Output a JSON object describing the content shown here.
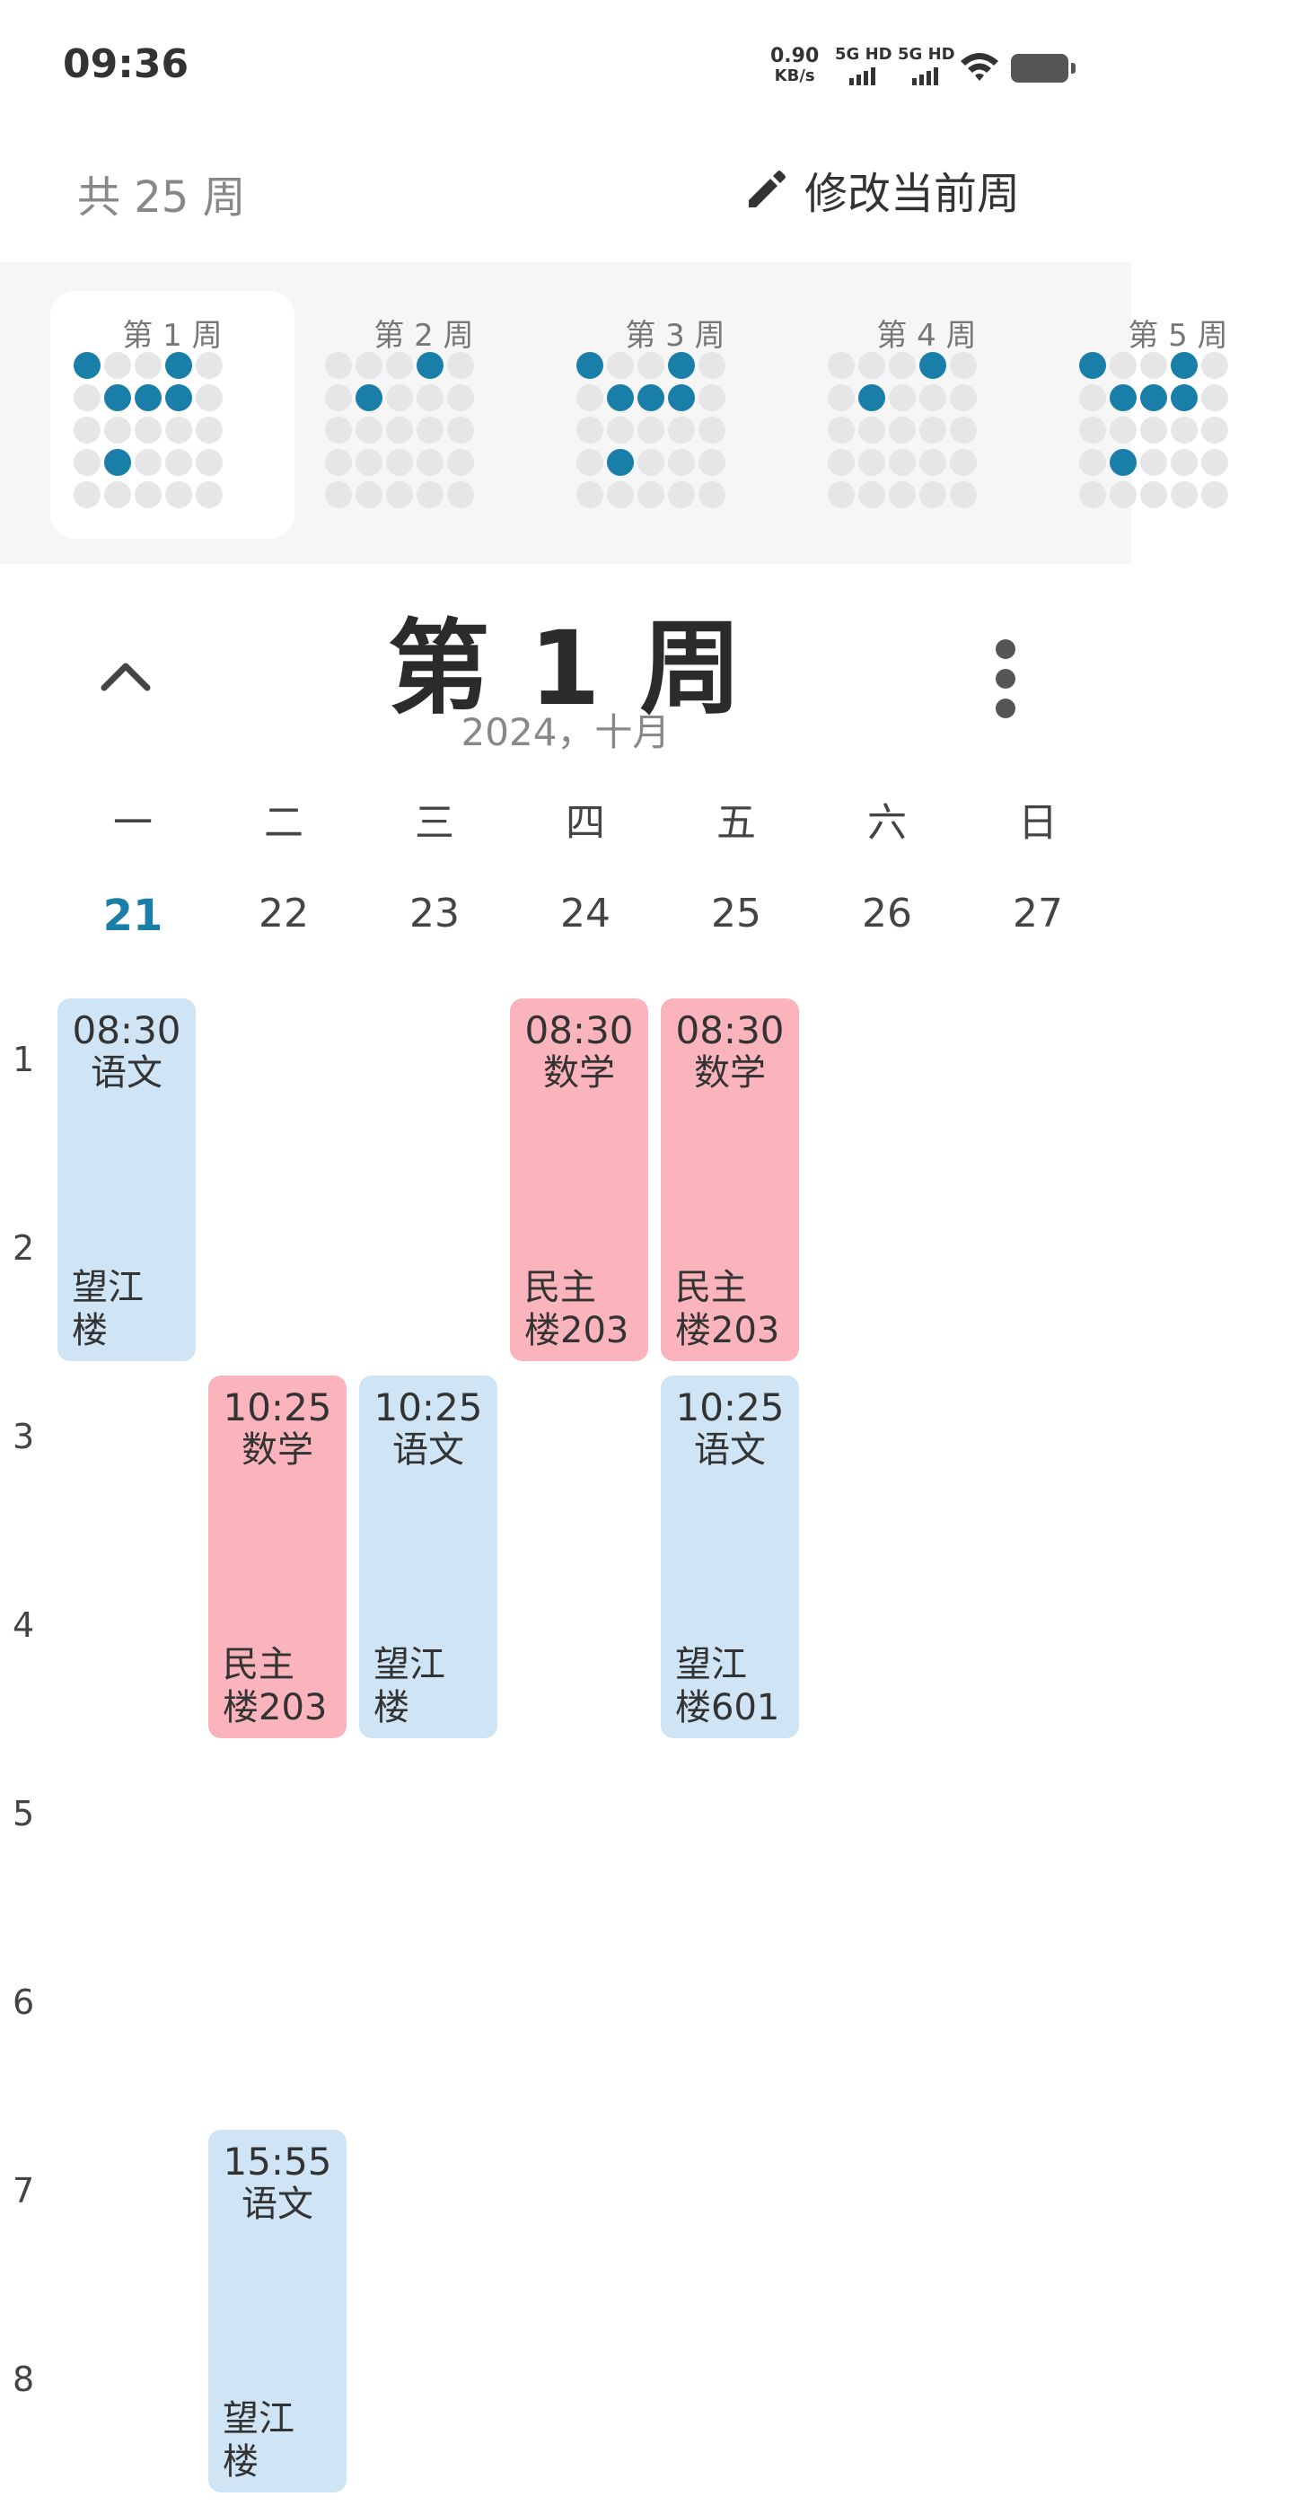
{
  "status_bar": {
    "time": "09:36",
    "net_speed_value": "0.90",
    "net_speed_unit": "KB/s",
    "sim1": "5G HD",
    "sim2": "5G HD"
  },
  "header": {
    "total_weeks": "共 25 周",
    "edit_week_label": "修改当前周"
  },
  "weeks": [
    {
      "label": "第 1 周",
      "active": true,
      "filled": [
        [
          0,
          0
        ],
        [
          0,
          3
        ],
        [
          1,
          1
        ],
        [
          1,
          2
        ],
        [
          1,
          3
        ],
        [
          3,
          1
        ]
      ]
    },
    {
      "label": "第 2 周",
      "active": false,
      "filled": [
        [
          0,
          3
        ],
        [
          1,
          1
        ]
      ]
    },
    {
      "label": "第 3 周",
      "active": false,
      "filled": [
        [
          0,
          0
        ],
        [
          0,
          3
        ],
        [
          1,
          1
        ],
        [
          1,
          2
        ],
        [
          1,
          3
        ],
        [
          3,
          1
        ]
      ]
    },
    {
      "label": "第 4 周",
      "active": false,
      "filled": [
        [
          0,
          3
        ],
        [
          1,
          1
        ]
      ]
    },
    {
      "label": "第 5 周",
      "active": false,
      "filled": [
        [
          0,
          0
        ],
        [
          0,
          3
        ],
        [
          1,
          1
        ],
        [
          1,
          2
        ],
        [
          1,
          3
        ],
        [
          3,
          1
        ]
      ]
    }
  ],
  "week_view": {
    "title": "第 1 周",
    "subtitle": "2024，十月"
  },
  "days": [
    {
      "name": "一",
      "date": "21",
      "today": true
    },
    {
      "name": "二",
      "date": "22",
      "today": false
    },
    {
      "name": "三",
      "date": "23",
      "today": false
    },
    {
      "name": "四",
      "date": "24",
      "today": false
    },
    {
      "name": "五",
      "date": "25",
      "today": false
    },
    {
      "name": "六",
      "date": "26",
      "today": false
    },
    {
      "name": "日",
      "date": "27",
      "today": false
    }
  ],
  "periods": [
    "1",
    "2",
    "3",
    "4",
    "5",
    "6",
    "7",
    "8"
  ],
  "courses": [
    {
      "day": 0,
      "start": 1,
      "span": 2,
      "time": "08:30",
      "name": "语文",
      "location": "望江\n楼",
      "color": "blue"
    },
    {
      "day": 3,
      "start": 1,
      "span": 2,
      "time": "08:30",
      "name": "数学",
      "location": "民主\n楼203",
      "color": "pink"
    },
    {
      "day": 4,
      "start": 1,
      "span": 2,
      "time": "08:30",
      "name": "数学",
      "location": "民主\n楼203",
      "color": "pink"
    },
    {
      "day": 1,
      "start": 3,
      "span": 2,
      "time": "10:25",
      "name": "数学",
      "location": "民主\n楼203",
      "color": "pink"
    },
    {
      "day": 2,
      "start": 3,
      "span": 2,
      "time": "10:25",
      "name": "语文",
      "location": "望江\n楼",
      "color": "blue"
    },
    {
      "day": 4,
      "start": 3,
      "span": 2,
      "time": "10:25",
      "name": "语文",
      "location": "望江\n楼601",
      "color": "blue"
    },
    {
      "day": 1,
      "start": 7,
      "span": 2,
      "time": "15:55",
      "name": "语文",
      "location": "望江\n楼",
      "color": "blue"
    }
  ],
  "colors": {
    "accent": "#1a7fa8",
    "course_blue": "#cfe4f4",
    "course_pink": "#fbb4bc"
  },
  "icons": {
    "edit": "pencil-icon",
    "collapse": "chevron-up-icon",
    "more": "more-vertical-icon"
  }
}
